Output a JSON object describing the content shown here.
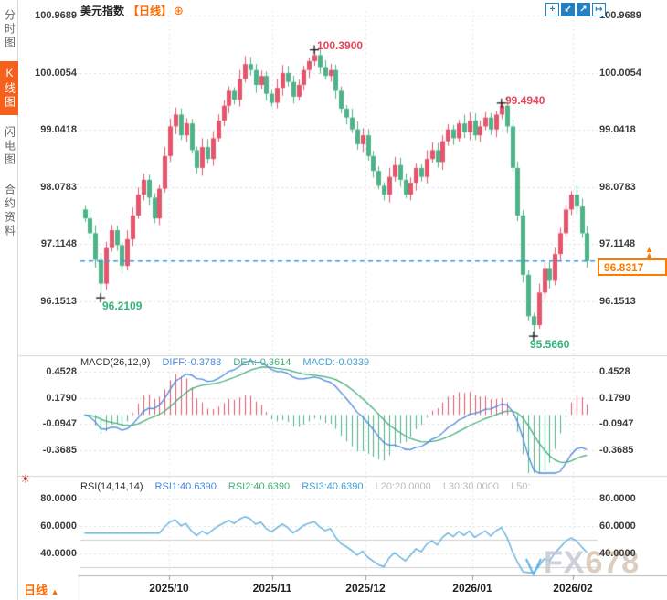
{
  "window": {
    "symbol": "美元指数",
    "period_tag": "【日线】",
    "expand_icon_glyph": "⊕"
  },
  "toolbar": {
    "icons": [
      {
        "name": "crosshair",
        "glyph": "+"
      },
      {
        "name": "zoom-out",
        "glyph": "↙"
      },
      {
        "name": "zoom-in",
        "glyph": "↗"
      },
      {
        "name": "pan",
        "glyph": "↦"
      }
    ]
  },
  "sidebar": {
    "tabs": [
      {
        "label": "分时图",
        "active": false
      },
      {
        "label": "K线图",
        "active": true
      },
      {
        "label": "闪电图",
        "active": false
      },
      {
        "label": "合约资料",
        "active": false
      }
    ]
  },
  "axes": {
    "price": [
      "100.9689",
      "100.0054",
      "99.0418",
      "98.0783",
      "97.1148",
      "96.1513"
    ],
    "macd": [
      "0.4528",
      "0.1790",
      "-0.0947",
      "-0.3685"
    ],
    "rsi": [
      "80.0000",
      "60.0000",
      "40.0000"
    ],
    "time": [
      "2025/10",
      "2025/11",
      "2025/12",
      "2026/01",
      "2026/02"
    ]
  },
  "indicators": {
    "macd": {
      "name": "MACD(26,12,9)",
      "diff": "DIFF:-0.3783",
      "dea": "DEA:-0.3614",
      "macd": "MACD:-0.0339"
    },
    "rsi": {
      "name": "RSI(14,14,14)",
      "rsi1": "RSI1:40.6390",
      "rsi2": "RSI2:40.6390",
      "rsi3": "RSI3:40.6390",
      "l20": "L20:20.0000",
      "l30": "L30:30.0000",
      "l50": "L50:"
    }
  },
  "annotations": {
    "peak_high": "100.3900",
    "secondary_high": "99.4940",
    "early_low": "96.2109",
    "bottom_low": "95.5660",
    "last_price": "96.8317"
  },
  "icons": {
    "up_arrow": "▲",
    "indicator_settings": "☀"
  },
  "footer": {
    "period_label": "日线",
    "dropdown_arrow": "▲"
  },
  "watermark": {
    "part1": "FX",
    "part2": "678"
  },
  "colors": {
    "up_candle": "#e5556d",
    "down_candle": "#4db389",
    "accent_orange": "#ff6a00",
    "active_tab": "#f5601e",
    "diff_line": "#4a89dc",
    "dea_line": "#45ae7c",
    "rsi_line": "#5fb0dd",
    "last_price_line": "#3d9bdc",
    "toolbar_blue": "#2381c2",
    "annotation_red": "#e8435c",
    "annotation_green": "#35b27b"
  },
  "chart_data": {
    "type": "candlestick+macd+rsi",
    "symbol": "美元指数",
    "period": "日线",
    "x_labels": [
      "2025/10",
      "2025/11",
      "2025/12",
      "2026/01",
      "2026/02"
    ],
    "price_ticks": [
      100.9689,
      100.0054,
      99.0418,
      98.0783,
      97.1148,
      96.1513
    ],
    "macd_ticks": [
      0.4528,
      0.179,
      -0.0947,
      -0.3685
    ],
    "rsi_ticks": [
      80,
      60,
      40
    ],
    "rsi_threshold_lines": [
      50,
      30,
      20
    ],
    "indicator_params": {
      "macd": [
        26,
        12,
        9
      ],
      "rsi": [
        14,
        14,
        14
      ]
    },
    "closes": [
      97.55,
      97.3,
      96.85,
      96.45,
      97.05,
      97.35,
      97.1,
      96.75,
      97.2,
      97.6,
      97.95,
      98.2,
      97.9,
      97.55,
      98.05,
      98.6,
      99.1,
      99.3,
      98.95,
      99.15,
      98.7,
      98.4,
      98.75,
      98.55,
      98.9,
      99.2,
      99.45,
      99.7,
      99.55,
      99.9,
      100.15,
      100.05,
      99.8,
      99.95,
      99.65,
      99.5,
      99.75,
      100.0,
      99.85,
      99.6,
      99.8,
      100.05,
      100.2,
      100.3,
      100.1,
      99.95,
      100.05,
      99.7,
      99.4,
      99.25,
      99.05,
      98.8,
      98.95,
      98.6,
      98.35,
      98.1,
      97.95,
      98.25,
      98.45,
      98.2,
      97.95,
      98.15,
      98.4,
      98.25,
      98.55,
      98.7,
      98.5,
      98.85,
      99.05,
      98.9,
      99.15,
      99.0,
      99.2,
      98.95,
      99.1,
      99.25,
      99.05,
      99.3,
      99.45,
      99.1,
      98.4,
      97.6,
      96.6,
      95.9,
      95.75,
      96.3,
      96.7,
      96.5,
      96.95,
      97.3,
      97.7,
      97.95,
      97.75,
      97.3,
      96.8317
    ],
    "key_points": {
      "early_low": {
        "index": 3,
        "value": 96.2109
      },
      "peak_high": {
        "index": 43,
        "value": 100.39
      },
      "secondary_high": {
        "index": 78,
        "value": 99.494
      },
      "bottom_low": {
        "index": 84,
        "value": 95.566
      },
      "last_close": 96.8317
    },
    "macd_display": {
      "diff": -0.3783,
      "dea": -0.3614,
      "macd": -0.0339
    },
    "rsi_display": {
      "rsi1": 40.639,
      "rsi2": 40.639,
      "rsi3": 40.639
    }
  }
}
